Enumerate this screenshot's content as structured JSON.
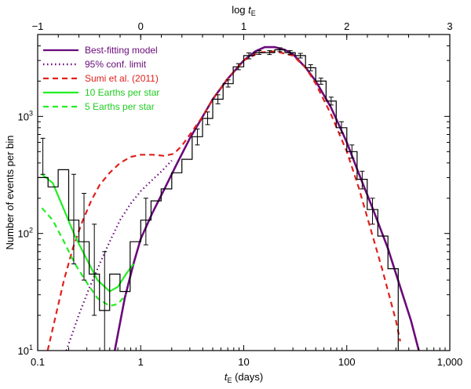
{
  "chart_data": {
    "type": "line",
    "xscale": "log",
    "yscale": "log",
    "xlim": [
      0.1,
      1000
    ],
    "ylim": [
      10,
      5000
    ],
    "xlabel_main": "t",
    "xlabel_sub": "E",
    "xlabel_rest": " (days)",
    "ylabel": "Number of events per bin",
    "top_axis_label_main": "log  t",
    "top_axis_label_sub": "E",
    "x_tick_labels": [
      "0.1",
      "1",
      "10",
      "100",
      "1,000"
    ],
    "x_tick_values": [
      0.1,
      1,
      10,
      100,
      1000
    ],
    "top_tick_labels": [
      "−1",
      "0",
      "1",
      "2",
      "3"
    ],
    "top_tick_values": [
      -1,
      0,
      1,
      2,
      3
    ],
    "y_tick_labels": [
      {
        "base": "10",
        "exp": "1"
      },
      {
        "base": "10",
        "exp": "2"
      },
      {
        "base": "10",
        "exp": "3"
      }
    ],
    "y_tick_values": [
      10,
      100,
      1000
    ],
    "legend": [
      {
        "label": "Best-fitting model",
        "color": "#6a0a7a",
        "dash": "solid",
        "text_color": "#6a0a7a"
      },
      {
        "label": "95% conf. limit",
        "color": "#6a0a7a",
        "dash": "dotted",
        "text_color": "#6a0a7a"
      },
      {
        "label": "Sumi et al. (2011)",
        "color": "#e0201c",
        "dash": "dashed",
        "text_color": "#e0201c"
      },
      {
        "label": "10 Earths per star",
        "color": "#22ee22",
        "dash": "solid",
        "text_color": "#22cc22"
      },
      {
        "label": "5 Earths per star",
        "color": "#22ee22",
        "dash": "dashed",
        "text_color": "#22cc22"
      }
    ],
    "histogram": {
      "edges": [
        0.1,
        0.126,
        0.158,
        0.2,
        0.251,
        0.316,
        0.398,
        0.5,
        0.63,
        0.79,
        1.0,
        1.26,
        1.58,
        2.0,
        2.51,
        3.16,
        3.98,
        5.0,
        6.3,
        7.9,
        10,
        12.6,
        15.8,
        20,
        25.1,
        31.6,
        39.8,
        50,
        63,
        79,
        100,
        126,
        158,
        200,
        251,
        316
      ],
      "values": [
        300,
        250,
        350,
        130,
        85,
        45,
        22,
        45,
        32,
        85,
        130,
        190,
        240,
        330,
        430,
        670,
        960,
        1400,
        1900,
        2650,
        3300,
        3500,
        3500,
        3700,
        3500,
        3300,
        2600,
        2000,
        1350,
        800,
        500,
        290,
        160,
        95,
        50
      ],
      "errors": [
        [
          320,
          650
        ],
        [
          null,
          null
        ],
        [
          null,
          null
        ],
        [
          55,
          320
        ],
        [
          40,
          220
        ],
        [
          20,
          120
        ],
        [
          10,
          70
        ],
        [
          null,
          null
        ],
        [
          null,
          null
        ],
        [
          null,
          null
        ],
        [
          80,
          200
        ],
        [
          null,
          null
        ],
        [
          null,
          null
        ],
        [
          null,
          null
        ],
        [
          null,
          null
        ],
        [
          570,
          780
        ],
        [
          850,
          1090
        ],
        [
          1280,
          1530
        ],
        [
          1780,
          2050
        ],
        [
          2500,
          2820
        ],
        [
          3100,
          3480
        ],
        [
          3380,
          3640
        ],
        [
          3370,
          3640
        ],
        [
          3570,
          3850
        ],
        [
          3380,
          3640
        ],
        [
          3150,
          3450
        ],
        [
          2450,
          2760
        ],
        [
          1880,
          2120
        ],
        [
          1250,
          1460
        ],
        [
          720,
          900
        ],
        [
          440,
          570
        ],
        [
          240,
          340
        ],
        [
          120,
          200
        ],
        [
          null,
          null
        ],
        [
          null,
          null
        ]
      ],
      "color": "#000000"
    },
    "series": [
      {
        "name": "Best-fitting model",
        "color": "#6a0a7a",
        "dash": "solid",
        "x": [
          0.56,
          0.7,
          0.85,
          1.0,
          1.3,
          1.7,
          2.2,
          3,
          4,
          5,
          7,
          10,
          13,
          16,
          20,
          25,
          30,
          40,
          50,
          70,
          100,
          130,
          180,
          250,
          330,
          420,
          500
        ],
        "y": [
          10,
          28,
          55,
          90,
          150,
          240,
          380,
          650,
          1000,
          1400,
          2100,
          3000,
          3600,
          3900,
          3900,
          3700,
          3400,
          2600,
          2000,
          1200,
          600,
          330,
          160,
          75,
          35,
          18,
          10
        ]
      },
      {
        "name": "95% conf. limit",
        "color": "#6a0a7a",
        "dash": "dotted",
        "x": [
          0.19,
          0.25,
          0.32,
          0.4,
          0.5,
          0.63,
          0.8,
          1.0,
          1.26,
          1.6,
          2.0
        ],
        "y": [
          10,
          20,
          35,
          55,
          85,
          130,
          180,
          230,
          280,
          340,
          420
        ]
      },
      {
        "name": "Sumi et al. (2011)",
        "color": "#e0201c",
        "dash": "dashed",
        "x": [
          0.125,
          0.15,
          0.18,
          0.22,
          0.27,
          0.33,
          0.4,
          0.5,
          0.63,
          0.8,
          1.0,
          1.3,
          1.7,
          2.1,
          2.5,
          3,
          4,
          5,
          7,
          10,
          14,
          20,
          30,
          40,
          50,
          70,
          100,
          130,
          170,
          220,
          300,
          330
        ],
        "y": [
          10,
          20,
          40,
          75,
          125,
          190,
          260,
          330,
          400,
          450,
          470,
          470,
          460,
          480,
          560,
          700,
          1000,
          1400,
          2100,
          3000,
          3500,
          3600,
          3300,
          2600,
          1900,
          1050,
          500,
          250,
          110,
          50,
          18,
          12
        ]
      },
      {
        "name": "10 Earths per star",
        "color": "#22ee22",
        "dash": "solid",
        "x": [
          0.11,
          0.14,
          0.18,
          0.23,
          0.3,
          0.38,
          0.5,
          0.6,
          0.72,
          0.85
        ],
        "y": [
          320,
          270,
          160,
          95,
          60,
          40,
          32,
          35,
          45,
          55
        ]
      },
      {
        "name": "5 Earths per star",
        "color": "#22ee22",
        "dash": "dashed",
        "x": [
          0.11,
          0.14,
          0.18,
          0.23,
          0.3,
          0.38,
          0.5,
          0.6,
          0.72
        ],
        "y": [
          165,
          130,
          85,
          55,
          38,
          28,
          24,
          25,
          30
        ]
      }
    ]
  }
}
